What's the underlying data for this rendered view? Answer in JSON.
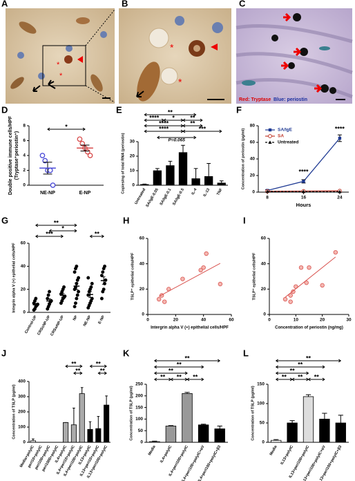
{
  "images": [
    {
      "panel": "A",
      "annotations": [
        "*",
        "*"
      ]
    },
    {
      "panel": "B",
      "annotations": [
        "*",
        "*"
      ]
    },
    {
      "panel": "C",
      "legend": [
        "Red: Tryptase",
        "Blue: periostin"
      ]
    }
  ],
  "chart_data": [
    {
      "panel": "D",
      "type": "dot",
      "ylabel": [
        "Double positive immune cells/HPF",
        "(Tryptase⁺periostin⁺)"
      ],
      "categories": [
        "NE-NP",
        "E-NP"
      ],
      "colors": [
        "#4b4bd8",
        "#d84b4b"
      ],
      "points": [
        [
          4,
          3.3,
          2,
          2,
          0
        ],
        [
          6.2,
          5.6,
          5,
          4.5,
          4
        ]
      ],
      "means": [
        2.3,
        5
      ],
      "errors": [
        0.8,
        0.4
      ],
      "ylim": [
        0,
        8
      ],
      "yticks": [
        0,
        2,
        4,
        6,
        8
      ],
      "annotations": [
        "*"
      ]
    },
    {
      "panel": "E",
      "type": "bar",
      "ylabel": [
        "Copies/ng of total RNA (periostin)"
      ],
      "categories": [
        "Untreated",
        "SA/IgE-0.05",
        "SA/IgE-0.1",
        "SA/IgE-0.5",
        "IL-4",
        "IL-13",
        "TNF"
      ],
      "values": [
        0.5,
        10,
        13.5,
        22.5,
        4.5,
        6,
        1.5
      ],
      "errors": [
        0.3,
        1.5,
        3,
        5,
        7,
        9,
        1.5
      ],
      "color": "#000000",
      "ylim": [
        0,
        30
      ],
      "yticks": [
        0,
        10,
        20,
        30
      ],
      "annotations": [
        "**",
        "****",
        "*",
        "**",
        "****",
        "**",
        "****",
        "***",
        "P=0.065"
      ]
    },
    {
      "panel": "F",
      "type": "line",
      "ylabel": [
        "Concentration of periostin (pg/ml)"
      ],
      "xlabel": "Hours",
      "x": [
        8,
        16,
        24
      ],
      "xlim": [
        6,
        26
      ],
      "xticks": [
        8,
        16,
        24
      ],
      "ylim": [
        0,
        80
      ],
      "yticks": [
        0,
        20,
        40,
        60,
        80
      ],
      "legend": "upper left",
      "series": [
        {
          "name": "SA/IgE",
          "color": "#1f3a93",
          "marker": "square",
          "values": [
            2,
            13,
            65
          ],
          "errors": [
            1,
            2,
            4
          ]
        },
        {
          "name": "SA",
          "color": "#c0392b",
          "marker": "circle",
          "values": [
            1,
            1.2,
            1.5
          ]
        },
        {
          "name": "Untreated",
          "color": "#000000",
          "marker": "triangle",
          "values": [
            0.8,
            0.6,
            0.5
          ]
        }
      ],
      "annotations": [
        "****",
        "****"
      ]
    },
    {
      "panel": "G",
      "type": "dot",
      "ylabel": [
        "Integrin alpha V (+) epithelial cells/HPF"
      ],
      "categories": [
        "Control-UP",
        "CRSsNP-UP",
        "CRSwNP-UP",
        "NP",
        "NE-NP",
        "E-NP"
      ],
      "color": "#000000",
      "points": [
        [
          2,
          3,
          5,
          6,
          7,
          8,
          10,
          12
        ],
        [
          3,
          5,
          7,
          9,
          10,
          12,
          15,
          18
        ],
        [
          8,
          10,
          12,
          13,
          14,
          16,
          18,
          20,
          22
        ],
        [
          5,
          8,
          12,
          15,
          18,
          20,
          22,
          25,
          28,
          30,
          35,
          38,
          40
        ],
        [
          4,
          6,
          8,
          10,
          12,
          15,
          18,
          20,
          22,
          25,
          30
        ],
        [
          12,
          18,
          20,
          25,
          28,
          32,
          35,
          38,
          40
        ]
      ],
      "means": [
        6.6,
        9.9,
        14.8,
        22.8,
        15.5,
        27.6
      ],
      "errors": [
        1.2,
        1.8,
        1.5,
        3,
        2.5,
        3.2
      ],
      "ylim": [
        0,
        60
      ],
      "yticks": [
        0,
        20,
        40,
        60
      ],
      "annotations": [
        "**",
        "*",
        "***",
        "**"
      ]
    },
    {
      "panel": "H",
      "type": "scatter",
      "ylabel": [
        "TSLP⁺ epithelial cells/HPF"
      ],
      "xlabel": "Intergrin alpha V (+) epithelial cells/HPF",
      "color": "#d9534f",
      "x": [
        8,
        12,
        15,
        10,
        25,
        38,
        40,
        42,
        52
      ],
      "values": [
        12,
        10,
        20,
        15,
        28,
        35,
        37,
        48,
        24
      ],
      "xlim": [
        0,
        60
      ],
      "xticks": [
        0,
        20,
        40,
        60
      ],
      "ylim": [
        0,
        60
      ],
      "yticks": [
        0,
        20,
        40,
        60
      ]
    },
    {
      "panel": "I",
      "type": "scatter",
      "ylabel": [
        "TSLP⁺ epithelial cells/HPF"
      ],
      "xlabel": "Concentration of periostin (ng/mg)",
      "color": "#d9534f",
      "x": [
        6,
        8,
        8,
        9,
        10,
        12,
        14,
        15,
        20,
        25
      ],
      "values": [
        12,
        10,
        15,
        18,
        22,
        37,
        25,
        37,
        23,
        49
      ],
      "xlim": [
        0,
        30
      ],
      "xticks": [
        0,
        10,
        20,
        30
      ],
      "ylim": [
        0,
        60
      ],
      "yticks": [
        0,
        20,
        40,
        60
      ]
    },
    {
      "panel": "J",
      "type": "bar",
      "ylabel": [
        "Concentration of TSLP (pg/ml)"
      ],
      "categories": [
        "Media+polyIC",
        "peri10+polyIC",
        "peri100+polyIC",
        "peri1000+polyIC",
        "IL4+polyIC",
        "IL4+peri10+polyIC",
        "IL4+peri100+polyIC",
        "IL13+polyIC",
        "IL13+peri10+polyIC",
        "IL13+peri100+polyIC"
      ],
      "values": [
        10,
        0,
        0,
        0,
        130,
        115,
        320,
        85,
        90,
        245
      ],
      "errors": [
        12,
        0,
        0,
        0,
        0,
        110,
        40,
        50,
        80,
        60
      ],
      "colors": [
        "#ffffff",
        "#ffffff",
        "#ffffff",
        "#ffffff",
        "#aaaaaa",
        "#aaaaaa",
        "#aaaaaa",
        "#000000",
        "#000000",
        "#000000"
      ],
      "ylim": [
        0,
        400
      ],
      "yticks": [
        0,
        100,
        200,
        300,
        400
      ],
      "annotations": [
        "**",
        "**",
        "**",
        "**"
      ]
    },
    {
      "panel": "K",
      "type": "bar",
      "ylabel": [
        "Concentration of TSLP (pg/ml)"
      ],
      "categories": [
        "Media",
        "IL4+polyIC",
        "IL4+peri100+polyIC",
        "IL4+peri100+polyIC+αV",
        "IL4+peri100+polyIC+β3"
      ],
      "values": [
        3,
        70,
        210,
        75,
        58
      ],
      "errors": [
        2,
        2,
        5,
        3,
        12
      ],
      "colors": [
        "#ffffff",
        "#999999",
        "#999999",
        "#000000",
        "#000000"
      ],
      "ylim": [
        0,
        250
      ],
      "yticks": [
        0,
        50,
        100,
        150,
        200,
        250
      ],
      "annotations": [
        "**",
        "**",
        "**",
        "**",
        "**",
        "**"
      ]
    },
    {
      "panel": "L",
      "type": "bar",
      "ylabel": [
        "Concentration of TSLP (pg/ml)"
      ],
      "categories": [
        "Media",
        "IL13+polyIC",
        "IL13+peri100+polyIC",
        "IL13+peri100+polyIC+αV",
        "IL13+peri100+polyIC+β3"
      ],
      "values": [
        5,
        50,
        118,
        60,
        50
      ],
      "errors": [
        2,
        6,
        5,
        15,
        20
      ],
      "colors": [
        "#ffffff",
        "#000000",
        "#dddddd",
        "#000000",
        "#000000"
      ],
      "ylim": [
        0,
        150
      ],
      "yticks": [
        0,
        50,
        100,
        150
      ],
      "annotations": [
        "**",
        "**",
        "**",
        "**",
        "**",
        "**"
      ]
    }
  ]
}
